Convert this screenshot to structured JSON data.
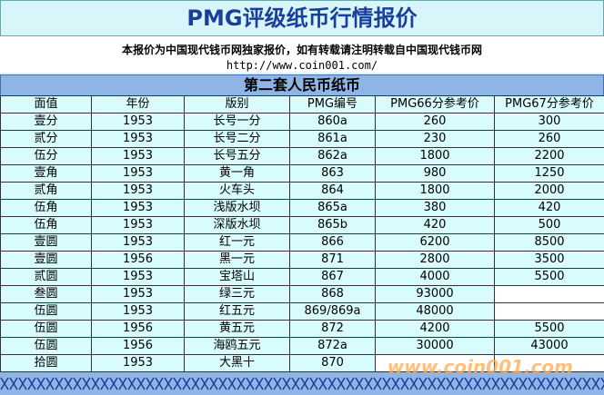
{
  "header": {
    "title": "PMG评级纸币行情报价",
    "notice": "本报价为中国现代钱币网独家报价，如有转载请注明转载自中国现代钱币网",
    "url": "http://www.coin001.com/"
  },
  "table": {
    "title": "第二套人民币纸币",
    "columns": [
      "面值",
      "年份",
      "版别",
      "PMG编号",
      "PMG66分参考价",
      "PMG67分参考价"
    ],
    "rows": [
      [
        "壹分",
        "1953",
        "长号一分",
        "860a",
        "260",
        "300"
      ],
      [
        "贰分",
        "1953",
        "长号二分",
        "861a",
        "230",
        "260"
      ],
      [
        "伍分",
        "1953",
        "长号五分",
        "862a",
        "1800",
        "2200"
      ],
      [
        "壹角",
        "1953",
        "黄一角",
        "863",
        "980",
        "1250"
      ],
      [
        "贰角",
        "1953",
        "火车头",
        "864",
        "1800",
        "2000"
      ],
      [
        "伍角",
        "1953",
        "浅版水坝",
        "865a",
        "380",
        "420"
      ],
      [
        "伍角",
        "1953",
        "深版水坝",
        "865b",
        "420",
        "500"
      ],
      [
        "壹圆",
        "1953",
        "红一元",
        "866",
        "6200",
        "8500"
      ],
      [
        "壹圆",
        "1956",
        "黑一元",
        "871",
        "2800",
        "3500"
      ],
      [
        "贰圆",
        "1953",
        "宝塔山",
        "867",
        "4000",
        "5500"
      ],
      [
        "叁圆",
        "1953",
        "绿三元",
        "868",
        "93000",
        null
      ],
      [
        "伍圆",
        "1953",
        "红五元",
        "869/869a",
        "48000",
        null
      ],
      [
        "伍圆",
        "1956",
        "黄五元",
        "872",
        "4200",
        "5500"
      ],
      [
        "伍圆",
        "1956",
        "海鸥五元",
        "872a",
        "30000",
        "43000"
      ],
      [
        "拾圆",
        "1953",
        "大黑十",
        "870",
        null,
        null
      ]
    ]
  },
  "footer": {
    "watermark": "www.coin001.com"
  }
}
